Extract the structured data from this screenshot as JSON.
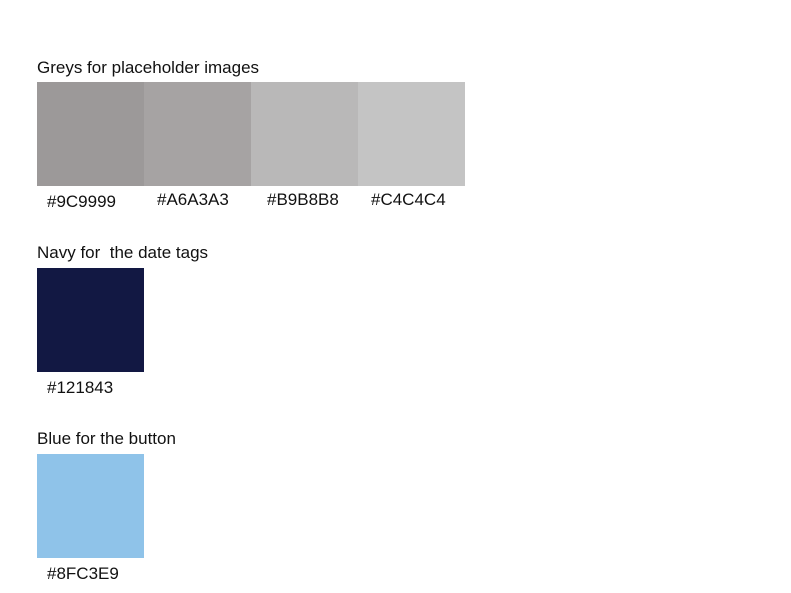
{
  "sections": [
    {
      "title": "Greys for placeholder images",
      "swatches": [
        {
          "hex": "#9C9999",
          "color": "#9C9999"
        },
        {
          "hex": "#A6A3A3",
          "color": "#A6A3A3"
        },
        {
          "hex": "#B9B8B8",
          "color": "#B9B8B8"
        },
        {
          "hex": "#C4C4C4",
          "color": "#C4C4C4"
        }
      ]
    },
    {
      "title": "Navy for  the date tags",
      "swatches": [
        {
          "hex": "#121843",
          "color": "#121843"
        }
      ]
    },
    {
      "title": "Blue for the button",
      "swatches": [
        {
          "hex": "#8FC3E9",
          "color": "#8FC3E9"
        }
      ]
    }
  ]
}
